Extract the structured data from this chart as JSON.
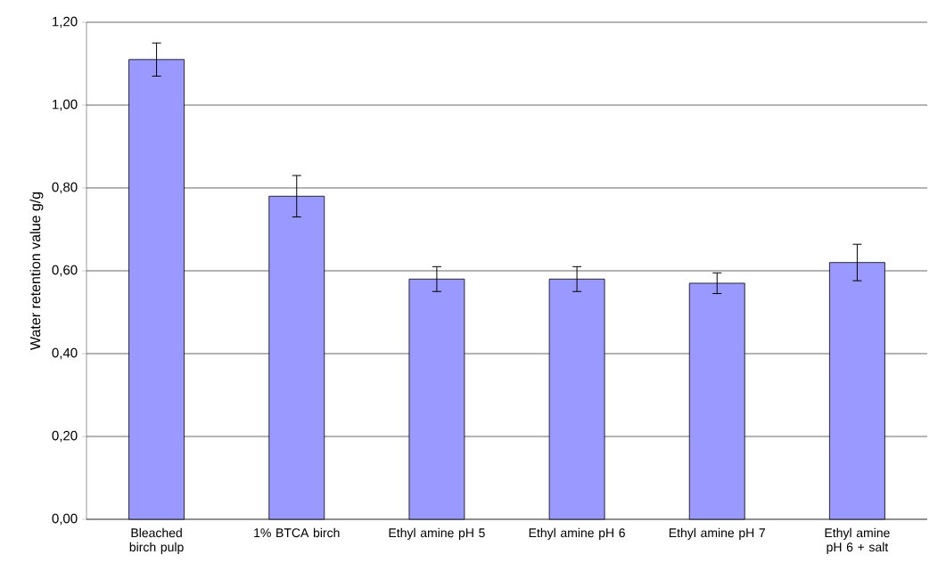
{
  "chart_data": {
    "type": "bar",
    "ylabel": "Water retention value g/g",
    "categories": [
      "Bleached birch pulp",
      "1% BTCA birch",
      "Ethyl amine pH 5",
      "Ethyl amine pH 6",
      "Ethyl amine pH 7",
      "Ethyl amine pH 6 + salt"
    ],
    "values": [
      1.11,
      0.78,
      0.58,
      0.58,
      0.57,
      0.62
    ],
    "errors": [
      0.04,
      0.05,
      0.03,
      0.03,
      0.025,
      0.044
    ],
    "color": "#9999ff",
    "ylim": [
      0,
      1.2
    ],
    "yticks": [
      {
        "value": 0,
        "label": "0,00"
      },
      {
        "value": 0.2,
        "label": "0,20"
      },
      {
        "value": 0.4,
        "label": "0,40"
      },
      {
        "value": 0.6,
        "label": "0,60"
      },
      {
        "value": 0.8,
        "label": "0,80"
      },
      {
        "value": 1.0,
        "label": "1,00"
      },
      {
        "value": 1.2,
        "label": "1,20"
      }
    ],
    "grid": "y"
  }
}
